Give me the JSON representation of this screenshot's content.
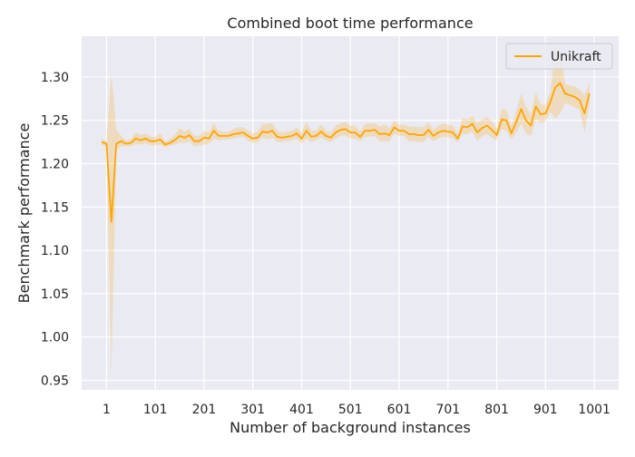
{
  "chart_data": {
    "type": "line",
    "title": "Combined boot time performance",
    "xlabel": "Number of background instances",
    "ylabel": "Benchmark performance",
    "xlim": [
      -50,
      1051
    ],
    "ylim": [
      0.939,
      1.347
    ],
    "xticks": [
      1,
      101,
      201,
      301,
      401,
      501,
      601,
      701,
      801,
      901,
      1001
    ],
    "xtick_labels": [
      "1",
      "101",
      "201",
      "301",
      "401",
      "501",
      "601",
      "701",
      "801",
      "901",
      "1001"
    ],
    "yticks": [
      0.95,
      1.0,
      1.05,
      1.1,
      1.15,
      1.2,
      1.25,
      1.3
    ],
    "ytick_labels": [
      "0.95",
      "1.00",
      "1.05",
      "1.10",
      "1.15",
      "1.20",
      "1.25",
      "1.30"
    ],
    "grid": true,
    "legend_position": "top-right",
    "series": [
      {
        "name": "Unikraft",
        "color": "#ffa500",
        "x": [
          -9,
          1,
          11,
          21,
          31,
          41,
          51,
          61,
          71,
          81,
          91,
          101,
          111,
          121,
          131,
          141,
          151,
          161,
          171,
          181,
          191,
          201,
          211,
          221,
          231,
          241,
          251,
          261,
          271,
          281,
          291,
          301,
          311,
          321,
          331,
          341,
          351,
          361,
          371,
          381,
          391,
          401,
          411,
          421,
          431,
          441,
          451,
          461,
          471,
          481,
          491,
          501,
          511,
          521,
          531,
          541,
          551,
          561,
          571,
          581,
          591,
          601,
          611,
          621,
          631,
          641,
          651,
          661,
          671,
          681,
          691,
          701,
          711,
          721,
          731,
          741,
          751,
          761,
          771,
          781,
          791,
          801,
          811,
          821,
          831,
          841,
          851,
          861,
          871,
          881,
          891,
          901,
          911,
          921,
          931,
          941,
          951,
          961,
          971,
          981,
          991
        ],
        "y": [
          1.225,
          1.223,
          1.133,
          1.223,
          1.226,
          1.223,
          1.224,
          1.229,
          1.227,
          1.229,
          1.226,
          1.226,
          1.228,
          1.222,
          1.224,
          1.227,
          1.232,
          1.23,
          1.233,
          1.226,
          1.226,
          1.23,
          1.229,
          1.238,
          1.232,
          1.232,
          1.232,
          1.234,
          1.235,
          1.236,
          1.232,
          1.229,
          1.23,
          1.237,
          1.236,
          1.238,
          1.231,
          1.23,
          1.231,
          1.232,
          1.235,
          1.229,
          1.238,
          1.231,
          1.232,
          1.237,
          1.232,
          1.23,
          1.236,
          1.239,
          1.24,
          1.236,
          1.236,
          1.231,
          1.238,
          1.238,
          1.239,
          1.234,
          1.235,
          1.233,
          1.242,
          1.238,
          1.238,
          1.234,
          1.234,
          1.233,
          1.233,
          1.239,
          1.232,
          1.236,
          1.238,
          1.237,
          1.236,
          1.229,
          1.243,
          1.242,
          1.246,
          1.236,
          1.241,
          1.244,
          1.239,
          1.233,
          1.251,
          1.25,
          1.235,
          1.248,
          1.263,
          1.25,
          1.244,
          1.266,
          1.257,
          1.258,
          1.271,
          1.288,
          1.293,
          1.281,
          1.279,
          1.277,
          1.273,
          1.258,
          1.281
        ],
        "ci_low": [
          1.222,
          1.22,
          0.958,
          1.216,
          1.22,
          1.22,
          1.22,
          1.223,
          1.222,
          1.224,
          1.221,
          1.221,
          1.222,
          1.219,
          1.221,
          1.222,
          1.224,
          1.224,
          1.226,
          1.22,
          1.221,
          1.222,
          1.223,
          1.229,
          1.227,
          1.228,
          1.228,
          1.229,
          1.23,
          1.231,
          1.227,
          1.224,
          1.225,
          1.23,
          1.228,
          1.23,
          1.225,
          1.225,
          1.226,
          1.227,
          1.229,
          1.223,
          1.229,
          1.225,
          1.227,
          1.23,
          1.227,
          1.225,
          1.229,
          1.232,
          1.233,
          1.229,
          1.229,
          1.226,
          1.231,
          1.231,
          1.232,
          1.226,
          1.226,
          1.226,
          1.235,
          1.232,
          1.232,
          1.226,
          1.226,
          1.225,
          1.225,
          1.231,
          1.226,
          1.229,
          1.231,
          1.23,
          1.229,
          1.225,
          1.234,
          1.234,
          1.237,
          1.226,
          1.232,
          1.234,
          1.23,
          1.227,
          1.24,
          1.238,
          1.228,
          1.236,
          1.246,
          1.235,
          1.232,
          1.251,
          1.247,
          1.249,
          1.26,
          1.252,
          1.258,
          1.27,
          1.268,
          1.265,
          1.262,
          1.236,
          1.27
        ],
        "ci_high": [
          1.228,
          1.226,
          1.305,
          1.239,
          1.232,
          1.227,
          1.228,
          1.236,
          1.233,
          1.235,
          1.231,
          1.231,
          1.235,
          1.226,
          1.228,
          1.233,
          1.241,
          1.237,
          1.24,
          1.232,
          1.232,
          1.238,
          1.236,
          1.247,
          1.238,
          1.237,
          1.237,
          1.24,
          1.242,
          1.242,
          1.238,
          1.235,
          1.237,
          1.246,
          1.246,
          1.247,
          1.238,
          1.236,
          1.237,
          1.238,
          1.242,
          1.236,
          1.248,
          1.238,
          1.238,
          1.245,
          1.238,
          1.236,
          1.244,
          1.247,
          1.248,
          1.244,
          1.244,
          1.237,
          1.246,
          1.246,
          1.247,
          1.243,
          1.245,
          1.241,
          1.25,
          1.245,
          1.245,
          1.243,
          1.243,
          1.242,
          1.242,
          1.248,
          1.239,
          1.244,
          1.246,
          1.245,
          1.244,
          1.234,
          1.253,
          1.251,
          1.255,
          1.247,
          1.251,
          1.254,
          1.249,
          1.24,
          1.263,
          1.262,
          1.243,
          1.261,
          1.281,
          1.266,
          1.257,
          1.282,
          1.268,
          1.268,
          1.283,
          1.332,
          1.33,
          1.292,
          1.29,
          1.289,
          1.285,
          1.279,
          1.293
        ]
      }
    ]
  }
}
